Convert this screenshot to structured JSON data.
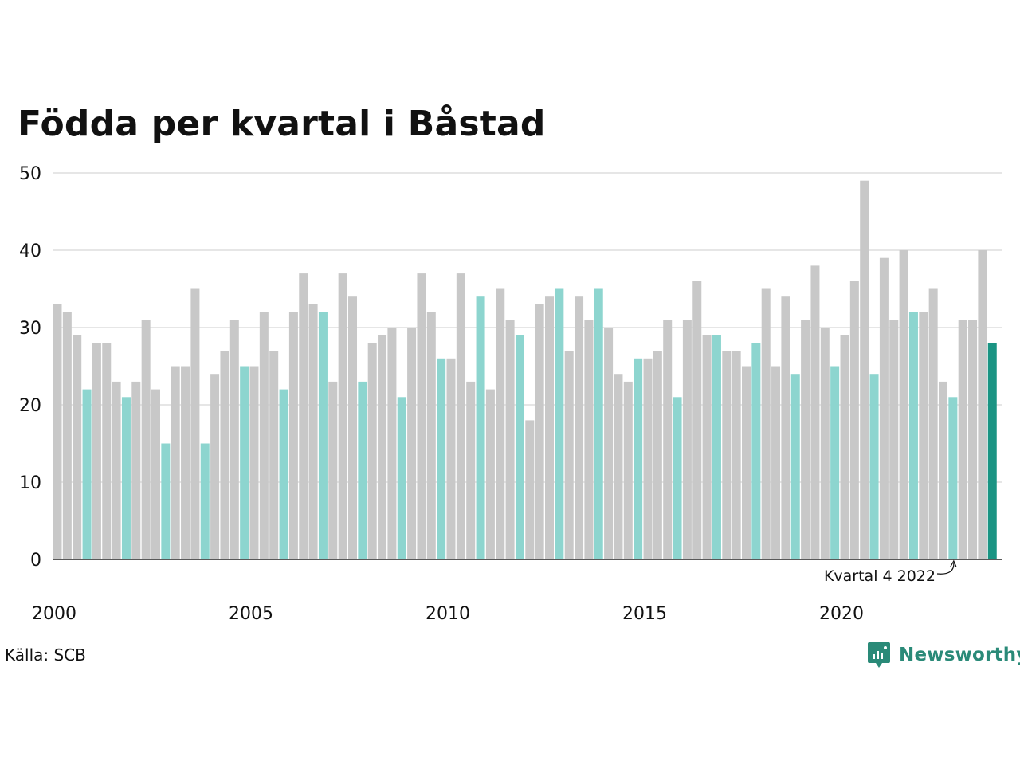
{
  "source_text": "Källa: SCB",
  "brand": {
    "name": "Newsworthy",
    "icon": "newsworthy-logo-icon",
    "color": "#2a8a78"
  },
  "colors": {
    "other_quarters": "#c8c8c8",
    "same_quarter": "#8dd5cf",
    "latest": "#1a9483",
    "gridline": "#e6e6e6",
    "baseline": "#222222"
  },
  "chart_data": {
    "type": "bar",
    "title": "Födda per kvartal i Båstad",
    "xlabel": "",
    "ylabel": "",
    "ylim": [
      0,
      50
    ],
    "yticks": [
      0,
      10,
      20,
      30,
      40,
      50
    ],
    "xtick_labels": [
      "2000",
      "2005",
      "2010",
      "2015",
      "2020"
    ],
    "grid": true,
    "annotation": {
      "text": "Kvartal 4 2022",
      "points_to": "2022 Q4"
    },
    "categories": [
      "2000 Q1",
      "2000 Q2",
      "2000 Q3",
      "2000 Q4",
      "2001 Q1",
      "2001 Q2",
      "2001 Q3",
      "2001 Q4",
      "2002 Q1",
      "2002 Q2",
      "2002 Q3",
      "2002 Q4",
      "2003 Q1",
      "2003 Q2",
      "2003 Q3",
      "2003 Q4",
      "2004 Q1",
      "2004 Q2",
      "2004 Q3",
      "2004 Q4",
      "2005 Q1",
      "2005 Q2",
      "2005 Q3",
      "2005 Q4",
      "2006 Q1",
      "2006 Q2",
      "2006 Q3",
      "2006 Q4",
      "2007 Q1",
      "2007 Q2",
      "2007 Q3",
      "2007 Q4",
      "2008 Q1",
      "2008 Q2",
      "2008 Q3",
      "2008 Q4",
      "2009 Q1",
      "2009 Q2",
      "2009 Q3",
      "2009 Q4",
      "2010 Q1",
      "2010 Q2",
      "2010 Q3",
      "2010 Q4",
      "2011 Q1",
      "2011 Q2",
      "2011 Q3",
      "2011 Q4",
      "2012 Q1",
      "2012 Q2",
      "2012 Q3",
      "2012 Q4",
      "2013 Q1",
      "2013 Q2",
      "2013 Q3",
      "2013 Q4",
      "2014 Q1",
      "2014 Q2",
      "2014 Q3",
      "2014 Q4",
      "2015 Q1",
      "2015 Q2",
      "2015 Q3",
      "2015 Q4",
      "2016 Q1",
      "2016 Q2",
      "2016 Q3",
      "2016 Q4",
      "2017 Q1",
      "2017 Q2",
      "2017 Q3",
      "2017 Q4",
      "2018 Q1",
      "2018 Q2",
      "2018 Q3",
      "2018 Q4",
      "2019 Q1",
      "2019 Q2",
      "2019 Q3",
      "2019 Q4",
      "2020 Q1",
      "2020 Q2",
      "2020 Q3",
      "2020 Q4",
      "2021 Q1",
      "2021 Q2",
      "2021 Q3",
      "2021 Q4",
      "2022 Q1",
      "2022 Q2",
      "2022 Q3",
      "2022 Q4",
      "2023 Q1",
      "2023 Q2",
      "2023 Q3",
      "2023 Q4"
    ],
    "values": [
      33,
      32,
      29,
      22,
      28,
      28,
      23,
      21,
      23,
      31,
      22,
      15,
      25,
      25,
      35,
      15,
      24,
      27,
      31,
      25,
      25,
      32,
      27,
      22,
      32,
      37,
      33,
      32,
      23,
      37,
      34,
      23,
      28,
      29,
      30,
      21,
      30,
      37,
      32,
      26,
      26,
      37,
      23,
      34,
      22,
      35,
      31,
      29,
      18,
      33,
      34,
      35,
      27,
      34,
      31,
      35,
      30,
      24,
      23,
      26,
      26,
      27,
      31,
      21,
      31,
      36,
      29,
      29,
      27,
      27,
      25,
      28,
      35,
      25,
      34,
      24,
      31,
      38,
      30,
      25,
      29,
      36,
      49,
      24,
      39,
      31,
      40,
      32,
      32,
      35,
      23,
      21,
      31,
      31,
      40,
      28
    ],
    "highlight": "Q4 bars in light teal; latest bar (2023 Q4) in dark teal"
  }
}
